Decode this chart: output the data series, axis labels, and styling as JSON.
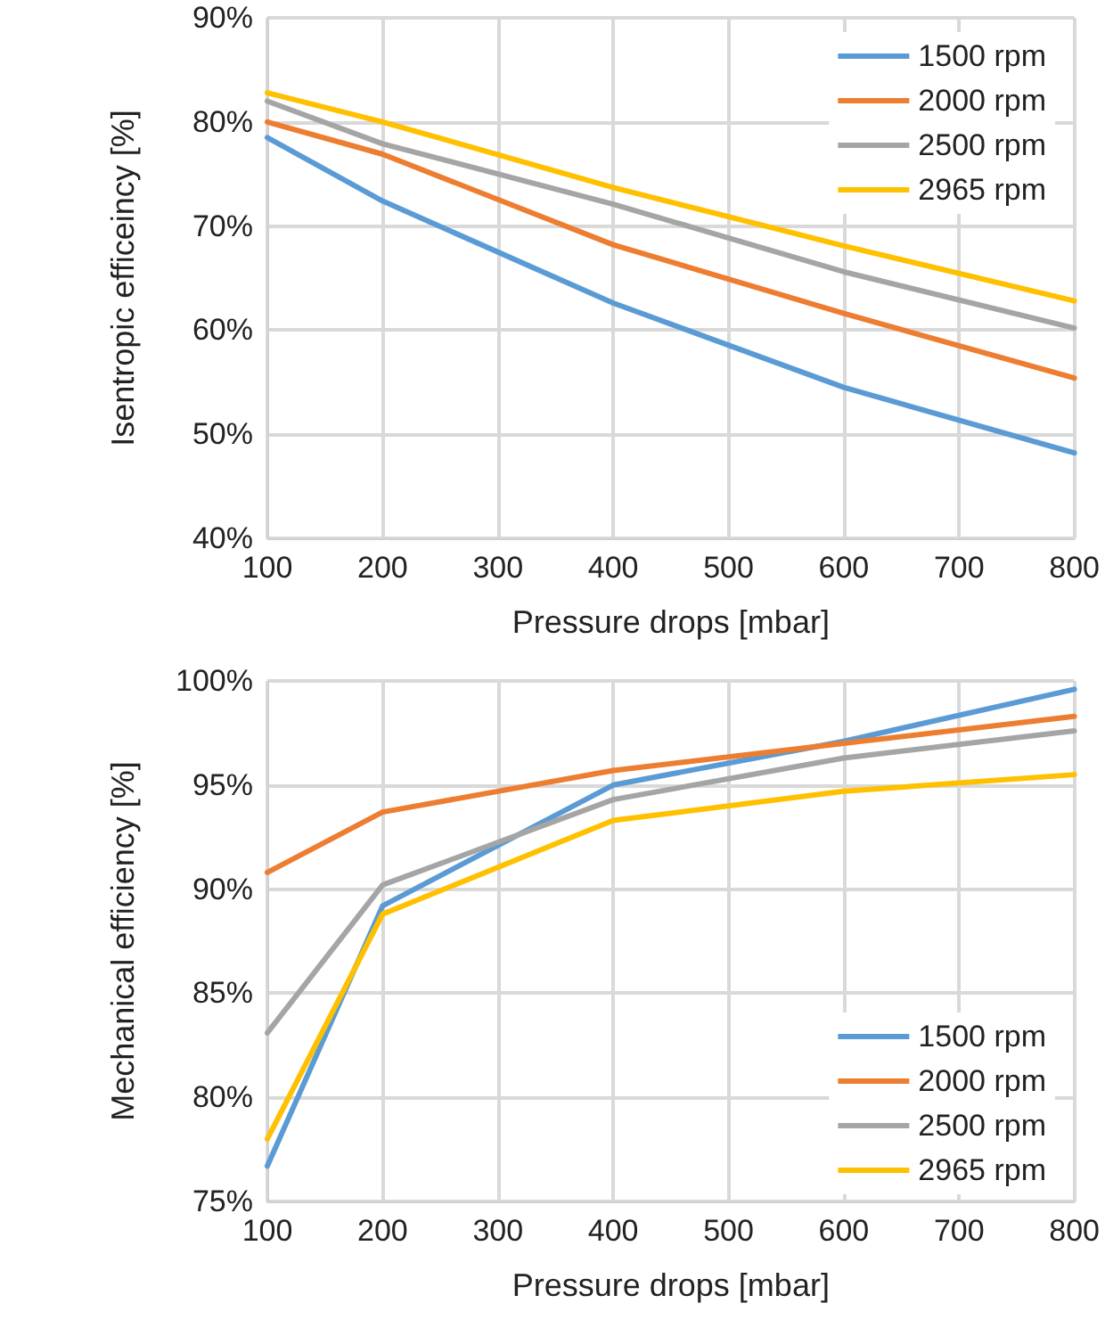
{
  "chart_data": [
    {
      "type": "line",
      "xlabel": "Pressure drops [mbar]",
      "ylabel": "Isentropic efficeincy [%]",
      "x": [
        100,
        200,
        400,
        600,
        800
      ],
      "series": [
        {
          "name": "1500 rpm",
          "color": "#5b9bd5",
          "values": [
            78.5,
            72.4,
            62.6,
            54.5,
            48.2
          ]
        },
        {
          "name": "2000 rpm",
          "color": "#ed7d31",
          "values": [
            80.0,
            76.9,
            68.2,
            61.6,
            55.4
          ]
        },
        {
          "name": "2500 rpm",
          "color": "#a5a5a5",
          "values": [
            82.0,
            77.9,
            72.1,
            65.6,
            60.2
          ]
        },
        {
          "name": "2965 rpm",
          "color": "#ffc000",
          "values": [
            82.8,
            80.0,
            73.7,
            68.1,
            62.8
          ]
        }
      ],
      "xlim": [
        100,
        800
      ],
      "xticks": [
        100,
        200,
        300,
        400,
        500,
        600,
        700,
        800
      ],
      "ylim": [
        40,
        90
      ],
      "yticks": [
        {
          "value": 40,
          "label": "40%"
        },
        {
          "value": 50,
          "label": "50%"
        },
        {
          "value": 60,
          "label": "60%"
        },
        {
          "value": 70,
          "label": "70%"
        },
        {
          "value": 80,
          "label": "80%"
        },
        {
          "value": 90,
          "label": "90%"
        }
      ],
      "grid": true,
      "legend": "top right",
      "marker": "none",
      "line_style": "solid"
    },
    {
      "type": "line",
      "xlabel": "Pressure drops [mbar]",
      "ylabel": "Mechanical efficiency [%]",
      "x": [
        100,
        200,
        400,
        600,
        800
      ],
      "series": [
        {
          "name": "1500 rpm",
          "color": "#5b9bd5",
          "values": [
            76.7,
            89.2,
            95.0,
            97.1,
            99.6
          ]
        },
        {
          "name": "2000 rpm",
          "color": "#ed7d31",
          "values": [
            90.8,
            93.7,
            95.7,
            97.0,
            98.3
          ]
        },
        {
          "name": "2500 rpm",
          "color": "#a5a5a5",
          "values": [
            83.1,
            90.2,
            94.3,
            96.3,
            97.6
          ]
        },
        {
          "name": "2965 rpm",
          "color": "#ffc000",
          "values": [
            78.0,
            88.8,
            93.3,
            94.7,
            95.5
          ]
        }
      ],
      "xlim": [
        100,
        800
      ],
      "xticks": [
        100,
        200,
        300,
        400,
        500,
        600,
        700,
        800
      ],
      "ylim": [
        75,
        100
      ],
      "yticks": [
        {
          "value": 75,
          "label": "75%"
        },
        {
          "value": 80,
          "label": "80%"
        },
        {
          "value": 85,
          "label": "85%"
        },
        {
          "value": 90,
          "label": "90%"
        },
        {
          "value": 95,
          "label": "95%"
        },
        {
          "value": 100,
          "label": "100%"
        }
      ],
      "grid": true,
      "legend": "bottom right",
      "marker": "none",
      "line_style": "solid"
    }
  ]
}
